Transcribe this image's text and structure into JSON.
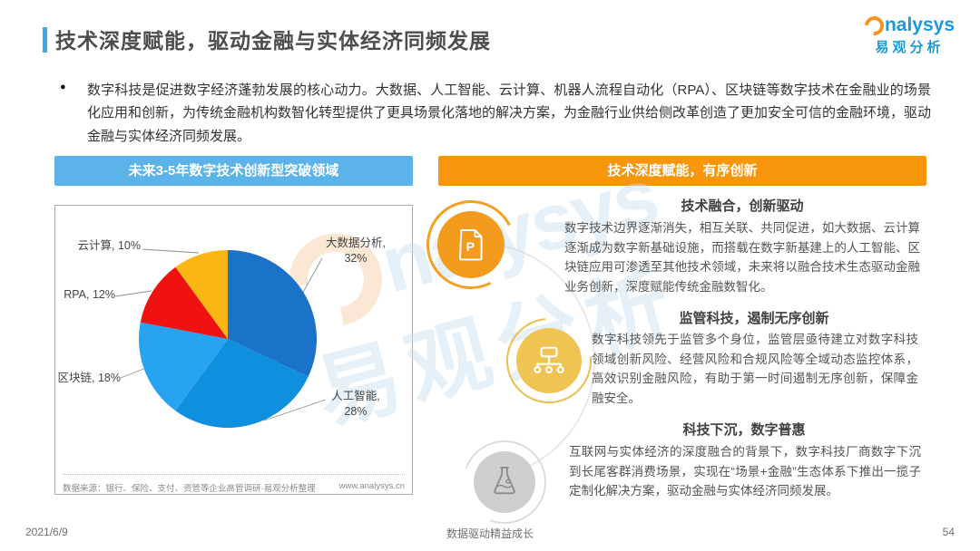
{
  "header": {
    "title": "技术深度赋能，驱动金融与实体经济同频发展"
  },
  "logo": {
    "brand": "analysys",
    "brand_stylized_rest": "nalysys",
    "cn": "易观分析"
  },
  "intro": {
    "text": "数字科技是促进数字经济蓬勃发展的核心动力。大数据、人工智能、云计算、机器人流程自动化（RPA）、区块链等数字技术在金融业的场景化应用和创新，为传统金融机构数智化转型提供了更具场景化落地的解决方案，为金融行业供给侧改革创造了更加安全可信的金融环境，驱动金融与实体经济同频发展。",
    "bullet": "●"
  },
  "left_panel": {
    "header": "未来3-5年数字技术创新型突破领域",
    "source": "数据来源：银行、保险、支付、资管等企业高管调研·易观分析整理",
    "url": "www.analysys.cn"
  },
  "chart_data": {
    "type": "pie",
    "title": "未来3-5年数字技术创新型突破领域",
    "unit": "%",
    "start_angle_deg": 0,
    "direction": "clockwise",
    "legend": "none",
    "slices": [
      {
        "label": "大数据分析",
        "value": 32,
        "color": "#1A72C9",
        "display": "大数据分析,\n32%"
      },
      {
        "label": "人工智能",
        "value": 28,
        "color": "#0F90DE",
        "display": "人工智能,\n28%"
      },
      {
        "label": "区块链",
        "value": 18,
        "color": "#27A3EF",
        "display": "区块链, 18%"
      },
      {
        "label": "RPA",
        "value": 12,
        "color": "#F01111",
        "display": "RPA, 12%"
      },
      {
        "label": "云计算",
        "value": 10,
        "color": "#FBB713",
        "display": "云计算, 10%"
      }
    ]
  },
  "right_panel": {
    "header": "技术深度赋能，有序创新",
    "items": [
      {
        "icon": "document-p-icon",
        "title": "技术融合，创新驱动",
        "body": "数字技术边界逐渐消失，相互关联、共同促进，如大数据、云计算逐渐成为数字新基础设施，而搭载在数字新基建上的人工智能、区块链应用可渗透至其他技术领域，未来将以融合技术生态驱动金融业务创新，深度赋能传统金融数智化。"
      },
      {
        "icon": "sitemap-icon",
        "title": "监管科技，遏制无序创新",
        "body": "数字科技领先于监管多个身位，监管层亟待建立对数字科技领域创新风险、经营风险和合规风险等全域动态监控体系，高效识别金融风险，有助于第一时间遏制无序创新，保障金融安全。"
      },
      {
        "icon": "flask-icon",
        "title": "科技下沉，数字普惠",
        "body": "互联网与实体经济的深度融合的背景下，数字科技厂商数字下沉到长尾客群消费场景，实现在“场景+金融”生态体系下推出一揽子定制化解决方案，驱动金融与实体经济同频发展。"
      }
    ]
  },
  "watermark": {
    "brand": "analysys",
    "brand_stylized_rest": "nalysys",
    "cn": "易观分析"
  },
  "footer": {
    "date": "2021/6/9",
    "motto": "数据驱动精益成长",
    "page": "54"
  },
  "colors": {
    "accent_blue": "#3FA9DC",
    "panel_blue": "#5BB3EA",
    "panel_orange": "#F8960B",
    "logo_blue": "#1B9AD6",
    "icon_orange": "#F29B1D",
    "icon_amber": "#EFC453",
    "icon_gray": "#CFCFCF"
  }
}
